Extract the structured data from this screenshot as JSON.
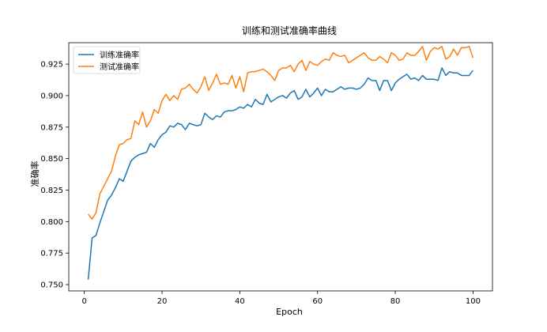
{
  "chart_data": {
    "type": "line",
    "title": "训练和测试准确率曲线",
    "xlabel": "Epoch",
    "ylabel": "准确率",
    "xlim": [
      -4,
      105
    ],
    "ylim": [
      0.745,
      0.942
    ],
    "xticks": [
      0,
      20,
      40,
      60,
      80,
      100
    ],
    "yticks": [
      0.75,
      0.775,
      0.8,
      0.825,
      0.85,
      0.875,
      0.9,
      0.925
    ],
    "ytick_labels": [
      "0.750",
      "0.775",
      "0.800",
      "0.825",
      "0.850",
      "0.875",
      "0.900",
      "0.925"
    ],
    "grid": false,
    "legend_position": "top-left",
    "series": [
      {
        "name": "训练准确率",
        "color": "#1f77b4",
        "x": [
          1,
          2,
          3,
          4,
          5,
          6,
          7,
          8,
          9,
          10,
          11,
          12,
          13,
          14,
          15,
          16,
          17,
          18,
          19,
          20,
          21,
          22,
          23,
          24,
          25,
          26,
          27,
          28,
          29,
          30,
          31,
          32,
          33,
          34,
          35,
          36,
          37,
          38,
          39,
          40,
          41,
          42,
          43,
          44,
          45,
          46,
          47,
          48,
          49,
          50,
          51,
          52,
          53,
          54,
          55,
          56,
          57,
          58,
          59,
          60,
          61,
          62,
          63,
          64,
          65,
          66,
          67,
          68,
          69,
          70,
          71,
          72,
          73,
          74,
          75,
          76,
          77,
          78,
          79,
          80,
          81,
          82,
          83,
          84,
          85,
          86,
          87,
          88,
          89,
          90,
          91,
          92,
          93,
          94,
          95,
          96,
          97,
          98,
          99,
          100
        ],
        "values": [
          0.754,
          0.787,
          0.789,
          0.799,
          0.808,
          0.817,
          0.821,
          0.827,
          0.834,
          0.832,
          0.84,
          0.848,
          0.851,
          0.853,
          0.854,
          0.855,
          0.862,
          0.859,
          0.865,
          0.869,
          0.871,
          0.876,
          0.875,
          0.878,
          0.877,
          0.873,
          0.878,
          0.877,
          0.876,
          0.877,
          0.886,
          0.883,
          0.881,
          0.884,
          0.883,
          0.887,
          0.888,
          0.888,
          0.889,
          0.891,
          0.89,
          0.893,
          0.891,
          0.897,
          0.894,
          0.893,
          0.901,
          0.895,
          0.897,
          0.899,
          0.9,
          0.898,
          0.902,
          0.904,
          0.897,
          0.899,
          0.905,
          0.899,
          0.902,
          0.906,
          0.9,
          0.905,
          0.903,
          0.903,
          0.905,
          0.907,
          0.905,
          0.906,
          0.906,
          0.905,
          0.906,
          0.909,
          0.914,
          0.912,
          0.912,
          0.904,
          0.912,
          0.912,
          0.904,
          0.91,
          0.913,
          0.915,
          0.917,
          0.913,
          0.914,
          0.912,
          0.916,
          0.913,
          0.913,
          0.913,
          0.912,
          0.922,
          0.916,
          0.919,
          0.918,
          0.918,
          0.916,
          0.916,
          0.916,
          0.92
        ]
      },
      {
        "name": "测试准确率",
        "color": "#ff7f0e",
        "x": [
          1,
          2,
          3,
          4,
          5,
          6,
          7,
          8,
          9,
          10,
          11,
          12,
          13,
          14,
          15,
          16,
          17,
          18,
          19,
          20,
          21,
          22,
          23,
          24,
          25,
          26,
          27,
          28,
          29,
          30,
          31,
          32,
          33,
          34,
          35,
          36,
          37,
          38,
          39,
          40,
          41,
          42,
          43,
          44,
          45,
          46,
          47,
          48,
          49,
          50,
          51,
          52,
          53,
          54,
          55,
          56,
          57,
          58,
          59,
          60,
          61,
          62,
          63,
          64,
          65,
          66,
          67,
          68,
          69,
          70,
          71,
          72,
          73,
          74,
          75,
          76,
          77,
          78,
          79,
          80,
          81,
          82,
          83,
          84,
          85,
          86,
          87,
          88,
          89,
          90,
          91,
          92,
          93,
          94,
          95,
          96,
          97,
          98,
          99,
          100
        ],
        "values": [
          0.806,
          0.802,
          0.807,
          0.822,
          0.828,
          0.834,
          0.84,
          0.852,
          0.861,
          0.862,
          0.865,
          0.866,
          0.88,
          0.877,
          0.887,
          0.875,
          0.88,
          0.889,
          0.886,
          0.896,
          0.901,
          0.896,
          0.9,
          0.897,
          0.905,
          0.906,
          0.909,
          0.905,
          0.902,
          0.907,
          0.915,
          0.904,
          0.91,
          0.917,
          0.909,
          0.91,
          0.909,
          0.916,
          0.906,
          0.915,
          0.903,
          0.918,
          0.919,
          0.919,
          0.92,
          0.921,
          0.919,
          0.916,
          0.912,
          0.92,
          0.922,
          0.922,
          0.924,
          0.919,
          0.925,
          0.928,
          0.92,
          0.927,
          0.925,
          0.924,
          0.927,
          0.929,
          0.928,
          0.934,
          0.932,
          0.931,
          0.932,
          0.926,
          0.928,
          0.93,
          0.932,
          0.934,
          0.93,
          0.928,
          0.928,
          0.931,
          0.929,
          0.926,
          0.934,
          0.932,
          0.928,
          0.929,
          0.934,
          0.932,
          0.932,
          0.935,
          0.939,
          0.928,
          0.935,
          0.938,
          0.937,
          0.939,
          0.929,
          0.931,
          0.937,
          0.932,
          0.938,
          0.938,
          0.939,
          0.93
        ]
      }
    ]
  }
}
